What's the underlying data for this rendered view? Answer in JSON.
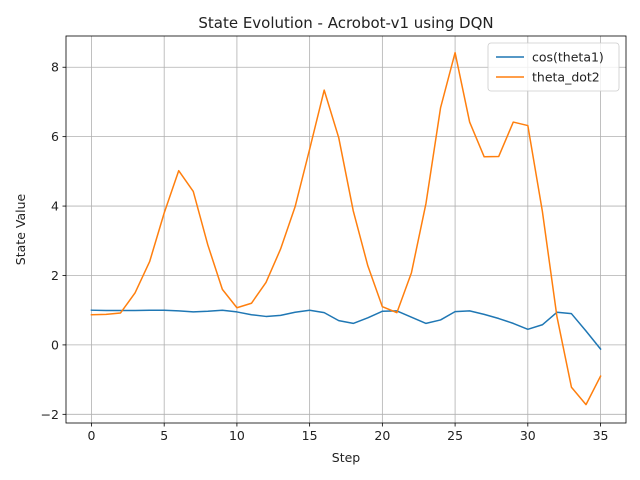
{
  "chart_data": {
    "type": "line",
    "title": "State Evolution - Acrobot-v1 using DQN",
    "xlabel": "Step",
    "ylabel": "State Value",
    "xlim": [
      -1.75,
      36.75
    ],
    "ylim": [
      -2.25,
      8.9
    ],
    "xticks": [
      0,
      5,
      10,
      15,
      20,
      25,
      30,
      35
    ],
    "yticks": [
      -2,
      0,
      2,
      4,
      6,
      8
    ],
    "ytick_labels": [
      "−2",
      "0",
      "2",
      "4",
      "6",
      "8"
    ],
    "grid": true,
    "legend_position": "top-right",
    "x": [
      0,
      1,
      2,
      3,
      4,
      5,
      6,
      7,
      8,
      9,
      10,
      11,
      12,
      13,
      14,
      15,
      16,
      17,
      18,
      19,
      20,
      21,
      22,
      23,
      24,
      25,
      26,
      27,
      28,
      29,
      30,
      31,
      32,
      33,
      34,
      35
    ],
    "series": [
      {
        "name": "cos(theta1)",
        "color": "#1f77b4",
        "values": [
          1.0,
          0.99,
          0.99,
          0.99,
          1.0,
          1.0,
          0.98,
          0.95,
          0.97,
          1.0,
          0.95,
          0.87,
          0.82,
          0.85,
          0.94,
          1.0,
          0.93,
          0.7,
          0.62,
          0.78,
          0.97,
          0.98,
          0.8,
          0.62,
          0.72,
          0.96,
          0.98,
          0.88,
          0.76,
          0.62,
          0.45,
          0.58,
          0.94,
          0.9,
          0.4,
          -0.12
        ]
      },
      {
        "name": "theta_dot2",
        "color": "#ff7f0e",
        "values": [
          0.87,
          0.88,
          0.92,
          1.5,
          2.4,
          3.8,
          5.02,
          4.42,
          2.88,
          1.6,
          1.07,
          1.2,
          1.8,
          2.76,
          3.98,
          5.64,
          7.34,
          5.97,
          3.86,
          2.28,
          1.1,
          0.93,
          2.08,
          4.08,
          6.83,
          8.42,
          6.42,
          5.42,
          5.43,
          6.42,
          6.32,
          3.85,
          0.82,
          -1.22,
          -1.72,
          -0.9
        ]
      }
    ]
  }
}
